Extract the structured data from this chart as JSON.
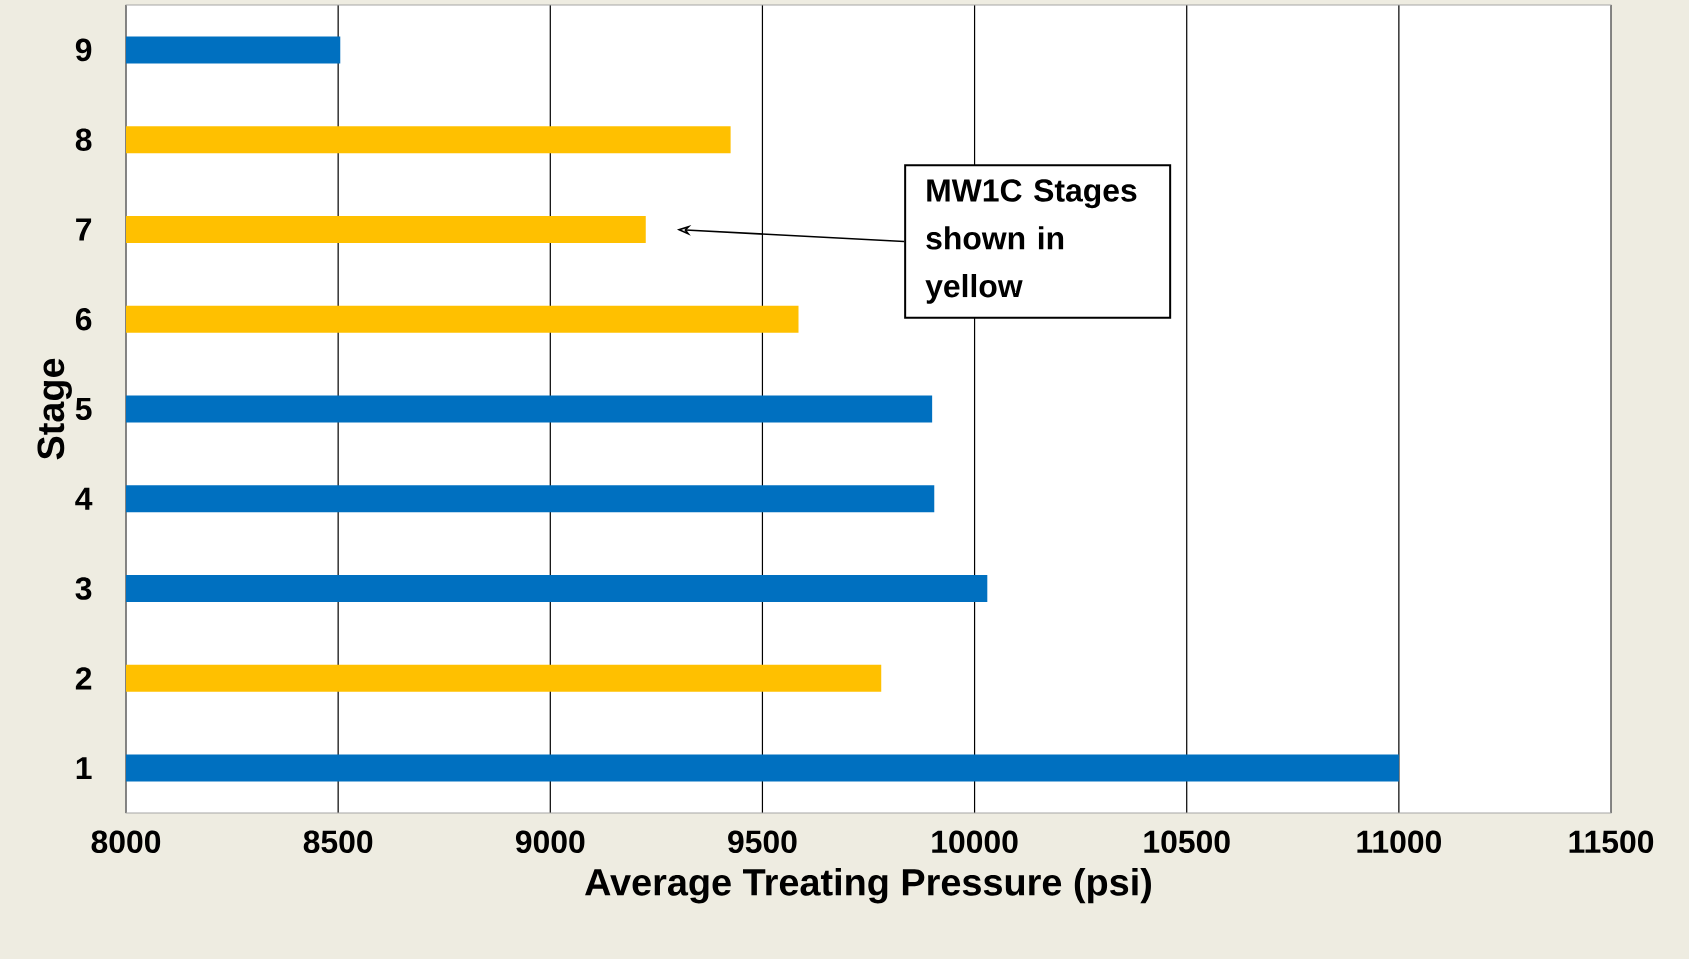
{
  "chart_data": {
    "type": "bar",
    "orientation": "horizontal",
    "xlabel": "Average Treating Pressure (psi)",
    "ylabel": "Stage",
    "categories": [
      "9",
      "8",
      "7",
      "6",
      "5",
      "4",
      "3",
      "2",
      "1"
    ],
    "values": [
      8505,
      9425,
      9225,
      9585,
      9900,
      9905,
      10030,
      9780,
      11000
    ],
    "colors": [
      "#0070c0",
      "#ffc000",
      "#ffc000",
      "#ffc000",
      "#0070c0",
      "#0070c0",
      "#0070c0",
      "#ffc000",
      "#0070c0"
    ],
    "xlim": [
      8000,
      11500
    ],
    "xticks": [
      8000,
      8500,
      9000,
      9500,
      10000,
      10500,
      11000,
      11500
    ],
    "grid": "x",
    "annotations": [
      "MW1C Stages shown in yellow"
    ]
  }
}
